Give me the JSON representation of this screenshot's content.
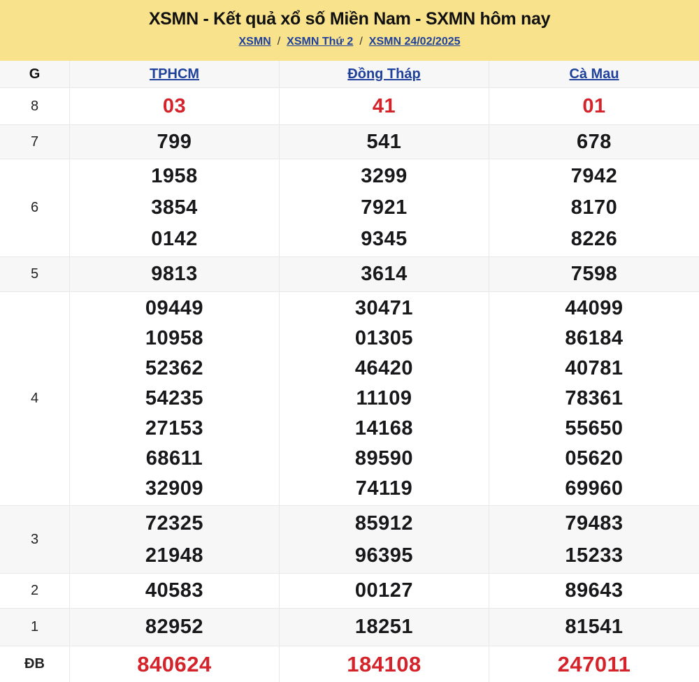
{
  "header": {
    "title": "XSMN - Kết quả xổ số Miền Nam - SXMN hôm nay",
    "separator": "/",
    "breadcrumb": [
      {
        "label": "XSMN"
      },
      {
        "label": "XSMN Thứ 2"
      },
      {
        "label": "XSMN 24/02/2025"
      }
    ]
  },
  "table": {
    "prize_column_header": "G",
    "columns": [
      "TPHCM",
      "Đồng Tháp",
      "Cà Mau"
    ],
    "rows": [
      {
        "prize": "8",
        "highlight": true,
        "values": [
          [
            "03"
          ],
          [
            "41"
          ],
          [
            "01"
          ]
        ]
      },
      {
        "prize": "7",
        "highlight": false,
        "values": [
          [
            "799"
          ],
          [
            "541"
          ],
          [
            "678"
          ]
        ]
      },
      {
        "prize": "6",
        "highlight": false,
        "values": [
          [
            "1958",
            "3854",
            "0142"
          ],
          [
            "3299",
            "7921",
            "9345"
          ],
          [
            "7942",
            "8170",
            "8226"
          ]
        ]
      },
      {
        "prize": "5",
        "highlight": false,
        "values": [
          [
            "9813"
          ],
          [
            "3614"
          ],
          [
            "7598"
          ]
        ]
      },
      {
        "prize": "4",
        "highlight": false,
        "values": [
          [
            "09449",
            "10958",
            "52362",
            "54235",
            "27153",
            "68611",
            "32909"
          ],
          [
            "30471",
            "01305",
            "46420",
            "11109",
            "14168",
            "89590",
            "74119"
          ],
          [
            "44099",
            "86184",
            "40781",
            "78361",
            "55650",
            "05620",
            "69960"
          ]
        ]
      },
      {
        "prize": "3",
        "highlight": false,
        "values": [
          [
            "72325",
            "21948"
          ],
          [
            "85912",
            "96395"
          ],
          [
            "79483",
            "15233"
          ]
        ]
      },
      {
        "prize": "2",
        "highlight": false,
        "values": [
          [
            "40583"
          ],
          [
            "00127"
          ],
          [
            "89643"
          ]
        ]
      },
      {
        "prize": "1",
        "highlight": false,
        "values": [
          [
            "82952"
          ],
          [
            "18251"
          ],
          [
            "81541"
          ]
        ]
      },
      {
        "prize": "ĐB",
        "highlight": true,
        "values": [
          [
            "840624"
          ],
          [
            "184108"
          ],
          [
            "247011"
          ]
        ]
      }
    ]
  },
  "colors": {
    "banner_bg": "#f9e28c",
    "link_blue": "#1f419b",
    "highlight_red": "#d4232a",
    "stripe_gray": "#f7f7f7",
    "border_gray": "#e8e8e8"
  }
}
